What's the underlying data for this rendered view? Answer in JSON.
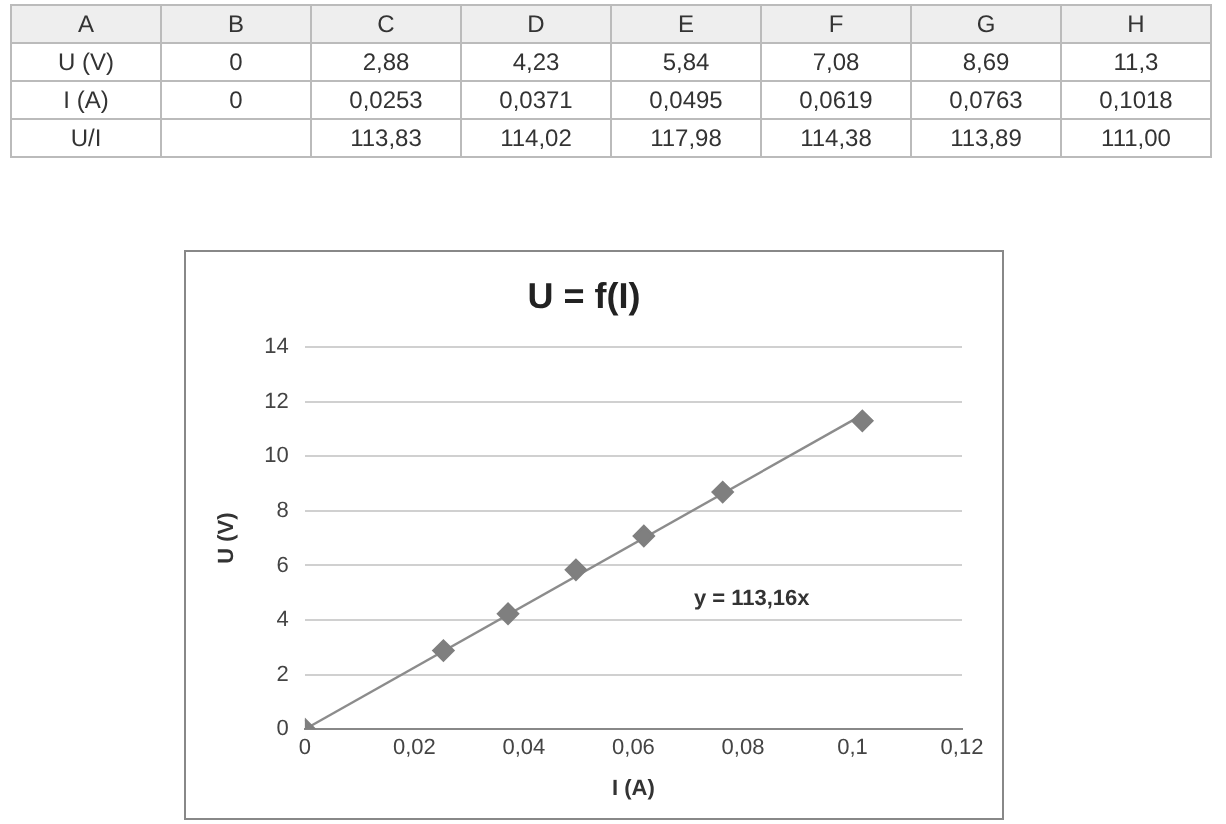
{
  "chart_data": [
    {
      "type": "other",
      "categories": [
        "A",
        "B",
        "C",
        "D",
        "E",
        "F",
        "G",
        "H"
      ],
      "cell_labels": [
        [
          "U (V)",
          "0",
          "2,88",
          "4,23",
          "5,84",
          "7,08",
          "8,69",
          "11,3"
        ],
        [
          "I (A)",
          "0",
          "0,0253",
          "0,0371",
          "0,0495",
          "0,0619",
          "0,0763",
          "0,1018"
        ],
        [
          "U/I",
          null,
          "113,83",
          "114,02",
          "117,98",
          "114,38",
          "113,89",
          "111,00"
        ]
      ]
    },
    {
      "type": "scatter",
      "title": "U = f(I)",
      "xlabel": "I (A)",
      "ylabel": "U (V)",
      "series": [
        {
          "type": "scatter",
          "color": "#7f7f7f",
          "marker": "diamond",
          "x": [
            0,
            0.0253,
            0.0371,
            0.0495,
            0.0619,
            0.0763,
            0.1018
          ],
          "values": [
            0,
            2.88,
            4.23,
            5.84,
            7.08,
            8.69,
            11.3
          ]
        },
        {
          "type": "line",
          "color": "#8c8c8c",
          "marker": "none",
          "x": [
            0,
            0.1018
          ],
          "values": [
            0,
            11.52
          ]
        }
      ],
      "xlim": [
        0,
        0.12
      ],
      "xticks": [
        0,
        {
          "value": 0.02,
          "label": "0,02"
        },
        {
          "value": 0.04,
          "label": "0,04"
        },
        {
          "value": 0.06,
          "label": "0,06"
        },
        {
          "value": 0.08,
          "label": "0,08"
        },
        {
          "value": 0.1,
          "label": "0,1"
        },
        {
          "value": 0.12,
          "label": "0,12"
        }
      ],
      "ylim": [
        0,
        14
      ],
      "yticks": [
        0,
        2,
        4,
        6,
        8,
        10,
        12,
        14
      ],
      "grid": "y",
      "legend": false,
      "annotations": [
        "y = 113,16x"
      ]
    }
  ]
}
